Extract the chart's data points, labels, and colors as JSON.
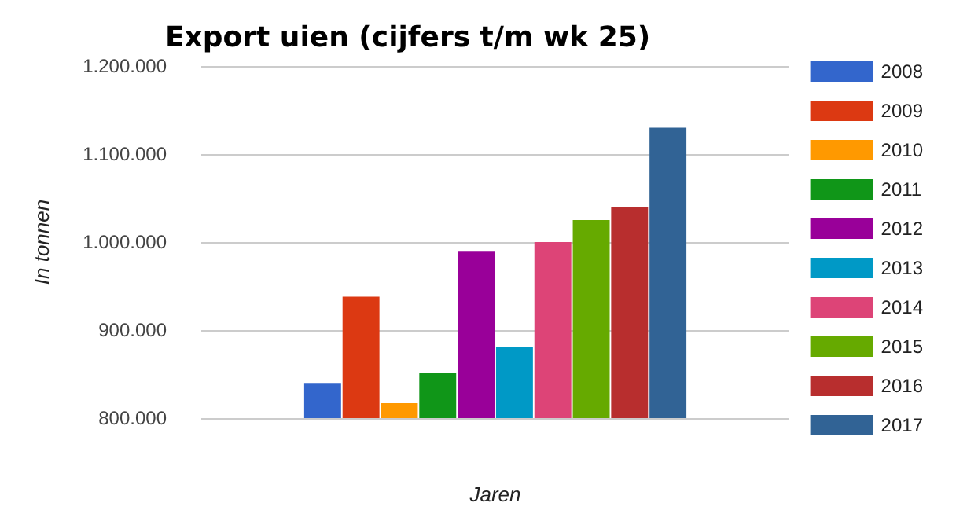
{
  "chart_data": {
    "type": "bar",
    "title": "Export uien (cijfers t/m wk 25)",
    "xlabel": "Jaren",
    "ylabel": "In tonnen",
    "categories": [
      null
    ],
    "series": [
      {
        "name": "2008",
        "color": "#3366cc",
        "values": [
          840000
        ]
      },
      {
        "name": "2009",
        "color": "#dc3912",
        "values": [
          938000
        ]
      },
      {
        "name": "2010",
        "color": "#ff9900",
        "values": [
          817000
        ]
      },
      {
        "name": "2011",
        "color": "#109618",
        "values": [
          851000
        ]
      },
      {
        "name": "2012",
        "color": "#990099",
        "values": [
          989000
        ]
      },
      {
        "name": "2013",
        "color": "#0099c6",
        "values": [
          881000
        ]
      },
      {
        "name": "2014",
        "color": "#dd4477",
        "values": [
          1000000
        ]
      },
      {
        "name": "2015",
        "color": "#66aa00",
        "values": [
          1025000
        ]
      },
      {
        "name": "2016",
        "color": "#b82e2e",
        "values": [
          1040000
        ]
      },
      {
        "name": "2017",
        "color": "#316395",
        "values": [
          1130000
        ]
      }
    ],
    "ylim": [
      800000,
      1200000
    ],
    "yticks": [
      {
        "value": 800000,
        "label": "800.000"
      },
      {
        "value": 900000,
        "label": "900.000"
      },
      {
        "value": 1000000,
        "label": "1.000.000"
      },
      {
        "value": 1100000,
        "label": "1.100.000"
      },
      {
        "value": 1200000,
        "label": "1.200.000"
      }
    ],
    "grid": "y",
    "legend": "right"
  }
}
